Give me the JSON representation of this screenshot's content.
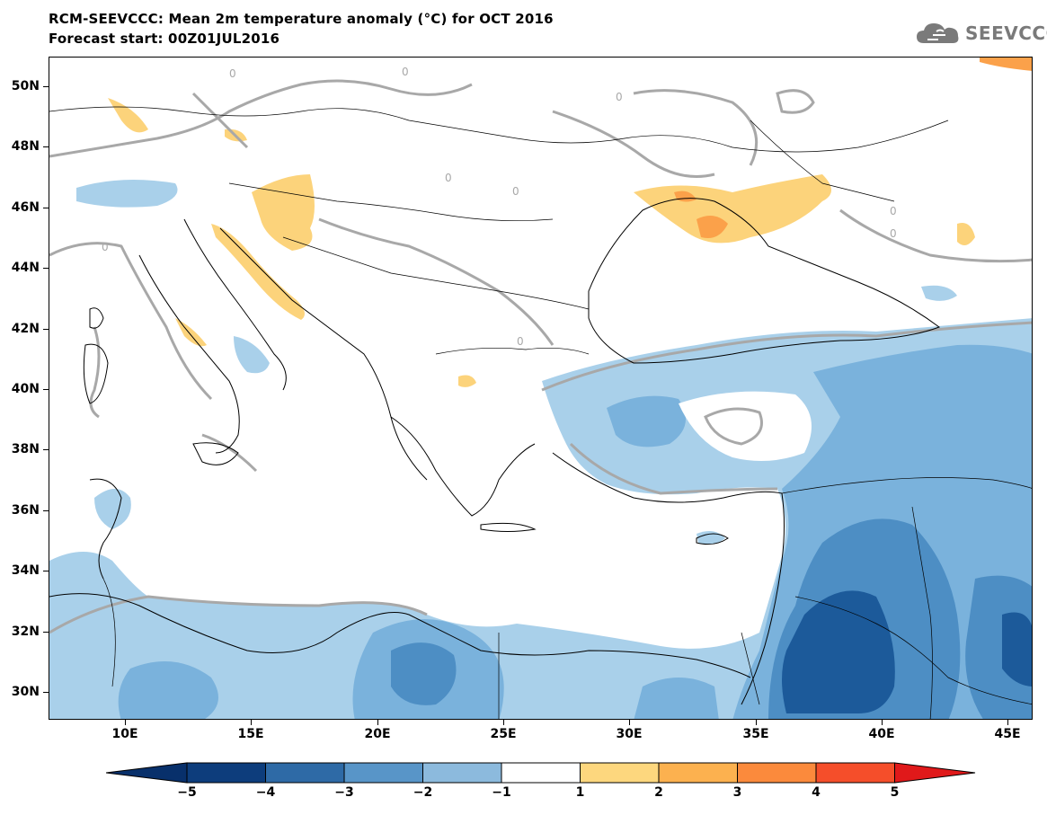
{
  "header": {
    "title": "RCM-SEEVCCC: Mean 2m temperature anomaly (°C) for OCT 2016",
    "subtitle": "Forecast start: 00Z01JUL2016"
  },
  "logo": {
    "text": "SEEVCCC",
    "icon": "cloud-icon",
    "color": "#7a7a7a"
  },
  "map": {
    "lat_labels": [
      "50N",
      "48N",
      "46N",
      "44N",
      "42N",
      "40N",
      "38N",
      "36N",
      "34N",
      "32N",
      "30N"
    ],
    "lon_labels": [
      "10E",
      "15E",
      "20E",
      "25E",
      "30E",
      "35E",
      "40E",
      "45E"
    ],
    "contour_label": "0",
    "colors": {
      "land_outline": "#000000",
      "zero_contour": "#a8a8a8",
      "lt_-4": "#1c5a9a",
      "-4_-3": "#4d8ec4",
      "-3_-2": "#7ab2dc",
      "-2_-1": "#a9d0ea",
      "1_2": "#fcd37b",
      "2_3": "#fba14a"
    }
  },
  "colorbar": {
    "ticks": [
      "−5",
      "−4",
      "−3",
      "−2",
      "−1",
      "1",
      "2",
      "3",
      "4",
      "5"
    ],
    "colors": [
      "#0d3d7c",
      "#2e6aa6",
      "#5895c8",
      "#8cbadd",
      "#ffffff",
      "#fdd77e",
      "#fcb14f",
      "#fb8a3c",
      "#f54e2a"
    ],
    "under_color": "#08306b",
    "over_color": "#e0191a"
  }
}
